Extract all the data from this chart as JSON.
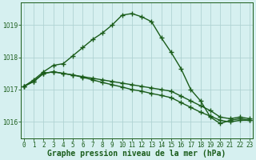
{
  "title": "Graphe pression niveau de la mer (hPa)",
  "hours": [
    0,
    1,
    2,
    3,
    4,
    5,
    6,
    7,
    8,
    9,
    10,
    11,
    12,
    13,
    14,
    15,
    16,
    17,
    18,
    19,
    20,
    21,
    22,
    23
  ],
  "line_main": [
    1017.1,
    1017.3,
    1017.55,
    1017.75,
    1017.8,
    1018.05,
    1018.3,
    1018.55,
    1018.75,
    1019.0,
    1019.3,
    1019.35,
    1019.25,
    1019.1,
    1018.6,
    1018.15,
    1017.65,
    1017.0,
    1016.65,
    1016.15,
    1015.95,
    1016.05,
    1016.1,
    1016.05
  ],
  "line_flat1": [
    1017.1,
    1017.25,
    1017.5,
    1017.55,
    1017.5,
    1017.45,
    1017.4,
    1017.35,
    1017.3,
    1017.25,
    1017.2,
    1017.15,
    1017.1,
    1017.05,
    1017.0,
    1016.95,
    1016.8,
    1016.65,
    1016.5,
    1016.35,
    1016.15,
    1016.1,
    1016.15,
    1016.1
  ],
  "line_flat2": [
    1017.1,
    1017.25,
    1017.5,
    1017.55,
    1017.5,
    1017.45,
    1017.38,
    1017.3,
    1017.22,
    1017.15,
    1017.08,
    1017.0,
    1016.95,
    1016.88,
    1016.82,
    1016.75,
    1016.6,
    1016.45,
    1016.3,
    1016.18,
    1016.05,
    1016.0,
    1016.05,
    1016.05
  ],
  "bg_color": "#d6f0f0",
  "grid_color": "#b0d4d4",
  "line_color": "#1a5c1a",
  "line_width": 1.0,
  "marker": "+",
  "marker_size": 4,
  "marker_linewidth": 1.0,
  "ylim": [
    1015.5,
    1019.7
  ],
  "yticks": [
    1016,
    1017,
    1018,
    1019
  ],
  "xtick_labels": [
    "0",
    "1",
    "2",
    "3",
    "4",
    "5",
    "6",
    "7",
    "8",
    "9",
    "10",
    "11",
    "12",
    "13",
    "14",
    "15",
    "16",
    "17",
    "18",
    "19",
    "20",
    "21",
    "22",
    "23"
  ],
  "tick_fontsize": 5.5,
  "xlabel_fontsize": 7.0,
  "fig_width": 3.2,
  "fig_height": 2.0,
  "dpi": 100
}
